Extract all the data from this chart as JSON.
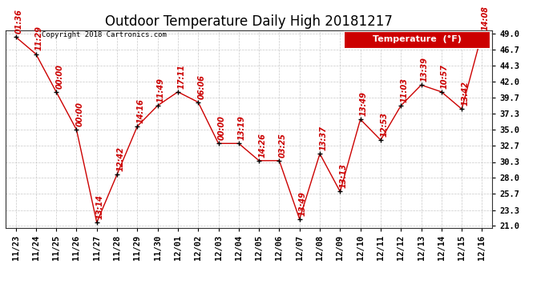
{
  "title": "Outdoor Temperature Daily High 20181217",
  "copyright": "Copyright 2018 Cartronics.com",
  "legend_label": "Temperature  (°F)",
  "background_color": "#ffffff",
  "plot_bg_color": "#ffffff",
  "grid_color": "#c8c8c8",
  "line_color": "#cc0000",
  "marker_color": "#000000",
  "label_color": "#cc0000",
  "dates": [
    "11/23",
    "11/24",
    "11/25",
    "11/26",
    "11/27",
    "11/28",
    "11/29",
    "11/30",
    "12/01",
    "12/02",
    "12/03",
    "12/04",
    "12/05",
    "12/06",
    "12/07",
    "12/08",
    "12/09",
    "12/10",
    "12/11",
    "12/12",
    "12/13",
    "12/14",
    "12/15",
    "12/16"
  ],
  "values": [
    48.5,
    46.0,
    40.5,
    35.0,
    21.5,
    28.5,
    35.5,
    38.5,
    40.5,
    39.0,
    33.0,
    33.0,
    30.5,
    30.5,
    22.0,
    31.5,
    26.0,
    36.5,
    33.5,
    38.5,
    41.5,
    40.5,
    38.0,
    49.0
  ],
  "annotations": [
    "01:36",
    "11:29",
    "00:00",
    "00:00",
    "13:14",
    "12:42",
    "14:16",
    "11:49",
    "17:11",
    "06:06",
    "00:00",
    "13:19",
    "14:26",
    "03:25",
    "13:49",
    "13:37",
    "13:13",
    "13:49",
    "12:53",
    "11:03",
    "13:39",
    "10:57",
    "13:42",
    "14:08"
  ],
  "ylim_min": 21.0,
  "ylim_max": 49.0,
  "yticks": [
    21.0,
    23.3,
    25.7,
    28.0,
    30.3,
    32.7,
    35.0,
    37.3,
    39.7,
    42.0,
    44.3,
    46.7,
    49.0
  ],
  "title_fontsize": 12,
  "annotation_fontsize": 7,
  "tick_fontsize": 7.5,
  "legend_fontsize": 8
}
